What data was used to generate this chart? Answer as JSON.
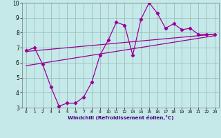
{
  "xlabel": "Windchill (Refroidissement éolien,°C)",
  "bg_color": "#c5e8e8",
  "line_color": "#990099",
  "grid_color": "#9bbfbf",
  "xlim": [
    -0.5,
    23.5
  ],
  "ylim": [
    3,
    10
  ],
  "xticks": [
    0,
    1,
    2,
    3,
    4,
    5,
    6,
    7,
    8,
    9,
    10,
    11,
    12,
    13,
    14,
    15,
    16,
    17,
    18,
    19,
    20,
    21,
    22,
    23
  ],
  "yticks": [
    3,
    4,
    5,
    6,
    7,
    8,
    9,
    10
  ],
  "curve1_x": [
    0,
    1,
    2,
    3,
    4,
    5,
    6,
    7,
    8,
    9,
    10,
    11,
    12,
    13,
    14,
    15,
    16,
    17,
    18,
    19,
    20,
    21,
    22,
    23
  ],
  "curve1_y": [
    6.8,
    7.0,
    5.9,
    4.4,
    3.1,
    3.3,
    3.3,
    3.7,
    4.7,
    6.5,
    7.5,
    8.7,
    8.5,
    6.5,
    8.9,
    10.0,
    9.3,
    8.3,
    8.6,
    8.2,
    8.3,
    7.9,
    7.9,
    7.9
  ],
  "line2_x": [
    0,
    23
  ],
  "line2_y": [
    6.75,
    7.9
  ],
  "line3_x": [
    0,
    23
  ],
  "line3_y": [
    5.8,
    7.8
  ],
  "marker": "D",
  "markersize": 2.2,
  "linewidth": 0.9
}
